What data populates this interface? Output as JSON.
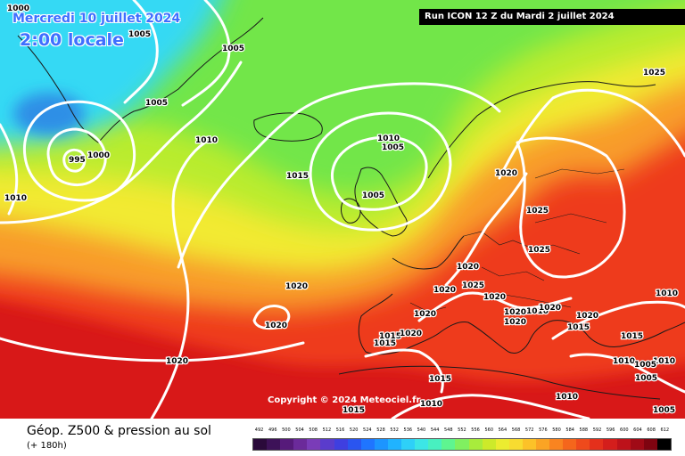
{
  "header": {
    "date_label": "Mercredi 10 juillet 2024",
    "time_label": "2:00 locale",
    "run_label": "Run ICON 12 Z du Mardi 2 juillet 2024"
  },
  "copyright": "Copyright © 2024 Meteociel.fr",
  "footer": {
    "product_title": "Géop. Z500 & pression au sol",
    "forecast_hour": "(+ 180h)"
  },
  "legend": {
    "ticks": [
      "492",
      "496",
      "500",
      "504",
      "508",
      "512",
      "516",
      "520",
      "524",
      "528",
      "532",
      "536",
      "540",
      "544",
      "548",
      "552",
      "556",
      "560",
      "564",
      "568",
      "572",
      "576",
      "580",
      "584",
      "588",
      "592",
      "596",
      "600",
      "604",
      "608",
      "612"
    ],
    "colors": [
      "#2a0a3a",
      "#3d1258",
      "#561a7a",
      "#6b2a9a",
      "#7a3cb8",
      "#5a3ccc",
      "#3f3fe0",
      "#2a55f0",
      "#1f75ff",
      "#1c95ff",
      "#20b3ff",
      "#2ed0f8",
      "#3ce6e6",
      "#48f0c0",
      "#5ef590",
      "#80f060",
      "#a8ec3c",
      "#cdea2a",
      "#ecec30",
      "#f8dc30",
      "#fcc228",
      "#fba424",
      "#f98420",
      "#f5661c",
      "#ef4a1c",
      "#e4301c",
      "#d41e1c",
      "#bd121a",
      "#a00a16",
      "#7e0410",
      "#000000"
    ]
  },
  "map": {
    "colors": {
      "ocean_cyan": "#35d9f4",
      "low_blue": "#2f8fe6",
      "green": "#72e64a",
      "lime": "#b9ec2e",
      "yellow": "#f2ea32",
      "orange": "#f89c2a",
      "red": "#ee3a1e",
      "deep_red": "#d81818",
      "isobar": "#ffffff",
      "coastline": "#1a1a1a"
    },
    "isobar_labels": [
      {
        "id": "l1",
        "text": "1000"
      },
      {
        "id": "l2",
        "text": "1005"
      },
      {
        "id": "l3",
        "text": "1005"
      },
      {
        "id": "l4",
        "text": "1005"
      },
      {
        "id": "l5",
        "text": "1010"
      },
      {
        "id": "l6",
        "text": "995"
      },
      {
        "id": "l7",
        "text": "1000"
      },
      {
        "id": "l8",
        "text": "1010"
      },
      {
        "id": "l9",
        "text": "1015"
      },
      {
        "id": "l10",
        "text": "1010"
      },
      {
        "id": "l11",
        "text": "1005"
      },
      {
        "id": "l12",
        "text": "1005"
      },
      {
        "id": "l13",
        "text": "1020"
      },
      {
        "id": "l14",
        "text": "1025"
      },
      {
        "id": "l15",
        "text": "1025"
      },
      {
        "id": "l16",
        "text": "1025"
      },
      {
        "id": "l17",
        "text": "1020"
      },
      {
        "id": "l18",
        "text": "1020"
      },
      {
        "id": "l19",
        "text": "1025"
      },
      {
        "id": "l20",
        "text": "1020"
      },
      {
        "id": "l21",
        "text": "1020"
      },
      {
        "id": "l22",
        "text": "1020"
      },
      {
        "id": "l23",
        "text": "1020"
      },
      {
        "id": "l24",
        "text": "1015"
      },
      {
        "id": "l25",
        "text": "1015"
      },
      {
        "id": "l26",
        "text": "1020"
      },
      {
        "id": "l27",
        "text": "1020"
      },
      {
        "id": "l28",
        "text": "1020"
      },
      {
        "id": "l29",
        "text": "1010"
      },
      {
        "id": "l30",
        "text": "1020"
      },
      {
        "id": "l31",
        "text": "1020"
      },
      {
        "id": "l32",
        "text": "1020"
      },
      {
        "id": "l33",
        "text": "1010"
      },
      {
        "id": "l34",
        "text": "1015"
      },
      {
        "id": "l35",
        "text": "1015"
      },
      {
        "id": "l36",
        "text": "1010"
      },
      {
        "id": "l37",
        "text": "1010"
      },
      {
        "id": "l38",
        "text": "1005"
      },
      {
        "id": "l39",
        "text": "1005"
      },
      {
        "id": "l40",
        "text": "1015"
      },
      {
        "id": "l41",
        "text": "1015"
      },
      {
        "id": "l42",
        "text": "1010"
      },
      {
        "id": "l43",
        "text": "1010"
      },
      {
        "id": "l44",
        "text": "1005"
      }
    ]
  }
}
